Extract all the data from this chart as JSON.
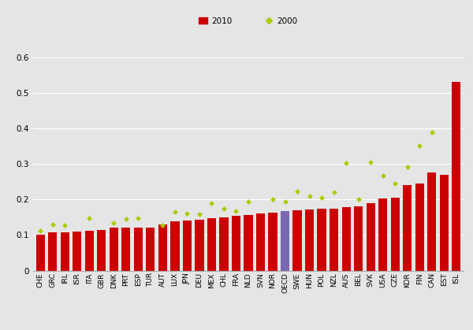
{
  "categories": [
    "CHE",
    "GRC",
    "IRL",
    "ISR",
    "ITA",
    "GBR",
    "DNK",
    "PRT",
    "ESP",
    "TUR",
    "AUT",
    "LUX",
    "JPN",
    "DEU",
    "MEX",
    "CHL",
    "FRA",
    "NLD",
    "SVN",
    "NOR",
    "OECD",
    "SWE",
    "HUN",
    "POL",
    "NZL",
    "AUS",
    "BEL",
    "SVK",
    "USA",
    "CZE",
    "KOR",
    "FIN",
    "CAN",
    "EST",
    "ISL"
  ],
  "values_2010": [
    0.1,
    0.108,
    0.108,
    0.11,
    0.113,
    0.115,
    0.12,
    0.12,
    0.122,
    0.122,
    0.13,
    0.138,
    0.14,
    0.143,
    0.148,
    0.15,
    0.155,
    0.157,
    0.16,
    0.163,
    0.167,
    0.17,
    0.172,
    0.175,
    0.175,
    0.178,
    0.18,
    0.19,
    0.202,
    0.205,
    0.24,
    0.245,
    0.275,
    0.27,
    0.53
  ],
  "values_2000": [
    0.112,
    0.13,
    0.127,
    null,
    0.148,
    null,
    0.135,
    0.145,
    0.148,
    null,
    0.128,
    0.165,
    0.16,
    0.158,
    0.19,
    0.175,
    0.168,
    0.195,
    null,
    0.2,
    0.193,
    0.222,
    0.21,
    0.205,
    0.22,
    0.302,
    0.2,
    0.305,
    0.268,
    0.245,
    0.292,
    0.352,
    0.39,
    null,
    null
  ],
  "bar_color_default": "#CC0000",
  "bar_color_oecd": "#7B68B5",
  "dot_color_2000": "#AACC00",
  "background_color": "#E5E5E5",
  "plot_bg_color": "#E5E5E5",
  "ylim": [
    0,
    0.65
  ],
  "yticks": [
    0.0,
    0.1,
    0.2,
    0.3,
    0.4,
    0.5,
    0.6
  ],
  "legend_2010_label": "2010",
  "legend_2000_label": "2000",
  "grid_color": "#FFFFFF",
  "tick_label_fontsize": 6.5,
  "figwidth": 6.0,
  "figheight": 4.19,
  "dpi": 100
}
